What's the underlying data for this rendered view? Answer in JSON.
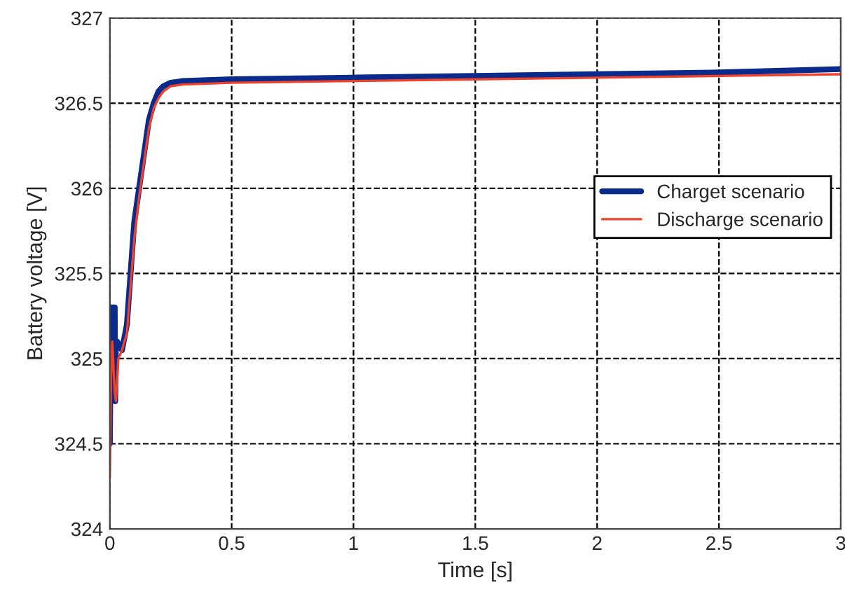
{
  "chart_data": {
    "type": "line",
    "xlabel": "Time [s]",
    "ylabel": "Battery voltage [V]",
    "xlim": [
      0,
      3
    ],
    "ylim": [
      324,
      327
    ],
    "xticks": [
      0,
      0.5,
      1,
      1.5,
      2,
      2.5,
      3
    ],
    "yticks": [
      324,
      324.5,
      325,
      325.5,
      326,
      326.5,
      327
    ],
    "grid": true,
    "legend": "right",
    "line_style": "solid",
    "series": [
      {
        "name": "Charget scenario",
        "color": "#0a2a8c",
        "x": [
          0,
          0.003,
          0.005,
          0.02,
          0.022,
          0.025,
          0.03,
          0.05,
          0.07,
          0.1,
          0.12,
          0.14,
          0.16,
          0.18,
          0.2,
          0.22,
          0.25,
          0.3,
          0.5,
          1,
          1.5,
          2,
          2.5,
          3
        ],
        "values": [
          324.5,
          325.0,
          325.3,
          325.3,
          324.75,
          325.1,
          325.1,
          325.05,
          325.2,
          325.8,
          326.0,
          326.2,
          326.4,
          326.5,
          326.57,
          326.6,
          326.62,
          326.63,
          326.64,
          326.65,
          326.66,
          326.67,
          326.68,
          326.7
        ]
      },
      {
        "name": "Discharge scenario",
        "color": "#f0402a",
        "x": [
          0,
          0.005,
          0.01,
          0.02,
          0.025,
          0.035,
          0.05,
          0.07,
          0.1,
          0.12,
          0.14,
          0.16,
          0.18,
          0.2,
          0.22,
          0.25,
          0.3,
          0.5,
          1,
          1.5,
          2,
          2.5,
          3
        ],
        "values": [
          324.3,
          324.9,
          325.1,
          324.8,
          324.75,
          325.0,
          325.05,
          325.15,
          325.7,
          325.95,
          326.15,
          326.35,
          326.47,
          326.53,
          326.57,
          326.6,
          326.61,
          326.62,
          326.63,
          326.64,
          326.65,
          326.66,
          326.67
        ]
      }
    ]
  }
}
